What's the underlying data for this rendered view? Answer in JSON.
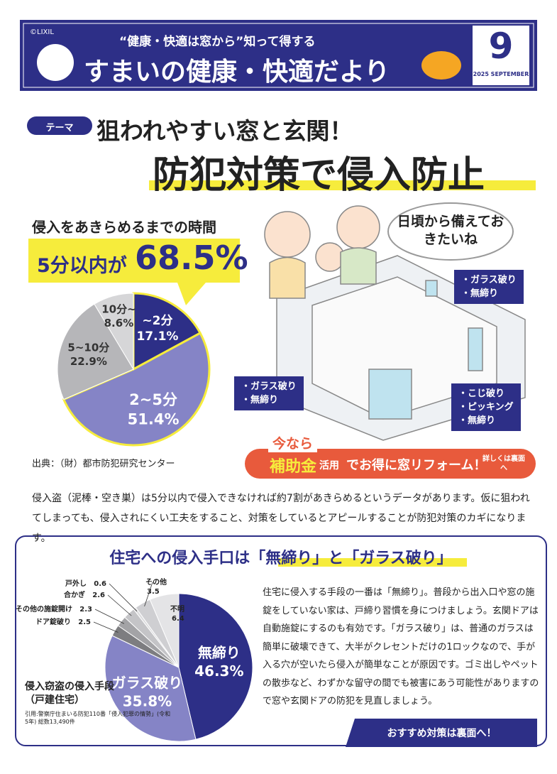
{
  "header": {
    "copyright": "©LIXIL",
    "catch": "“健康・快適は窓から”知って得する",
    "title": "すまいの健康・快適だより",
    "month": "9",
    "issue": "2025 SEPTEMBER"
  },
  "theme": {
    "tag": "テーマ",
    "subtitle": "狙われやすい窓と玄関！",
    "title": "防犯対策で侵入防止"
  },
  "speech": "日頃から備えておきたいね",
  "callouts": [
    [
      "・ガラス破り",
      "・無締り"
    ],
    [
      "・ガラス破り",
      "・無締り"
    ],
    [
      "・こじ破り",
      "・ピッキング",
      "・無締り"
    ]
  ],
  "banner": {
    "tag": "今なら",
    "key": "補助金",
    "mid": "活用",
    "text": "でお得に窓リフォーム！",
    "note": "詳しくは裏面へ"
  },
  "intro": "侵入盗（泥棒・空き巣）は5分以内で侵入できなければ約7割があきらめるというデータがあります。仮に狙われてしまっても、侵入されにくい工夫をすること、対策をしているとアピールすることが防犯対策のカギになります。",
  "section2": {
    "title": "住宅への侵入手口は「無締り」と「ガラス破り」",
    "body": "住宅に侵入する手段の一番は「無締り」。普段から出入口や窓の施錠をしていない家は、戸締り習慣を身につけましょう。玄関ドアは自動施錠にするのも有効です。「ガラス破り」は、普通のガラスは簡単に破壊できて、大半がクレセントだけの1ロックなので、手が入る穴が空いたら侵入が簡単なことが原因です。ゴミ出しやペットの散歩など、わずかな留守の間でも被害にあう可能性がありますので窓や玄関ドアの防犯を見直しましょう。",
    "button": "おすすめ対策は裏面へ！"
  },
  "chart_data": [
    {
      "type": "pie",
      "title": "侵入をあきらめるまでの時間",
      "highlight": [
        "5分以内が",
        "68.5%"
      ],
      "source": "出典：（財）都市防犯研究センター",
      "categories": [
        "~2分",
        "2~5分",
        "5~10分",
        "10分~"
      ],
      "values": [
        17.1,
        51.4,
        22.9,
        8.6
      ],
      "value_labels": [
        "17.1%",
        "51.4%",
        "22.9%",
        "8.6%"
      ],
      "colors": [
        "#2d2f87",
        "#8584c6",
        "#b6b6b9",
        "#d6d6d8"
      ]
    },
    {
      "type": "pie",
      "title": "侵入窃盗の侵入手段（戸建住宅）",
      "source": "引用:警察庁住まいる防犯110番「侵入犯罪の情勢」(令和5年) 総数13,490件",
      "categories": [
        "無締り",
        "ガラス破り",
        "ドア錠破り",
        "その他の施錠開け",
        "合かぎ",
        "戸外し",
        "その他",
        "不明"
      ],
      "values": [
        46.3,
        35.8,
        2.5,
        2.3,
        2.6,
        0.6,
        3.5,
        6.4
      ],
      "value_labels": [
        "46.3%",
        "35.8%",
        "2.5",
        "2.3",
        "2.6",
        "0.6",
        "3.5",
        "6.4"
      ],
      "colors": [
        "#2d2f87",
        "#8584c6",
        "#7d7d80",
        "#a3a3a6",
        "#c4c4c7",
        "#dcdcde",
        "#cfcfd2",
        "#e4e4e6"
      ]
    }
  ]
}
